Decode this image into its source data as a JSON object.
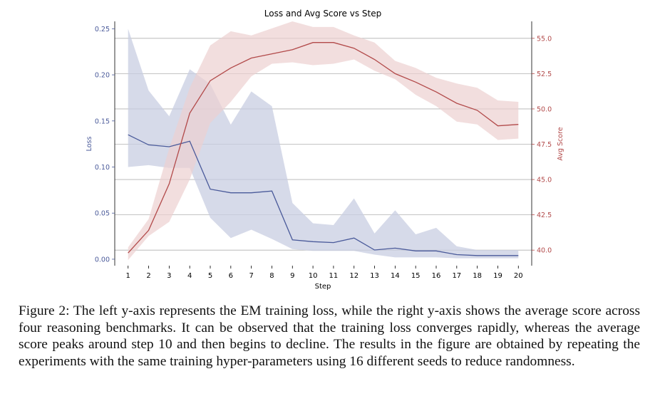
{
  "figure": {
    "caption": "Figure 2: The left y-axis represents the EM training loss, while the right y-axis shows the average score across four reasoning benchmarks. It can be observed that the training loss converges rapidly, whereas the average score peaks around step 10 and then begins to decline. The results in the figure are obtained by repeating the experiments with the same training hyper-parameters using 16 different seeds to reduce randomness."
  },
  "colors": {
    "loss": "#4a5a9a",
    "loss_band": "#c8cde2",
    "score": "#b24a4a",
    "score_band": "#ecd0d0",
    "grid": "#b0b0b0",
    "axis": "#000000"
  },
  "chart_data": {
    "type": "line",
    "title": "Loss and Avg Score vs Step",
    "xlabel": "Step",
    "ylabel_left": "Loss",
    "ylabel_right": "Avg Score",
    "x": [
      1,
      2,
      3,
      4,
      5,
      6,
      7,
      8,
      9,
      10,
      11,
      12,
      13,
      14,
      15,
      16,
      17,
      18,
      19,
      20
    ],
    "xlim": [
      0.35,
      20.65
    ],
    "ylim_left": [
      -0.007,
      0.258
    ],
    "ylim_right": [
      38.9,
      56.2
    ],
    "yticks_left": [
      "0.00",
      "0.05",
      "0.10",
      "0.15",
      "0.20",
      "0.25"
    ],
    "yticks_right": [
      "40.0",
      "42.5",
      "45.0",
      "47.5",
      "50.0",
      "52.5",
      "55.0"
    ],
    "grid": "horizontal (right axis ticks)",
    "series": [
      {
        "name": "Loss",
        "axis": "left",
        "values": [
          0.135,
          0.124,
          0.122,
          0.128,
          0.076,
          0.072,
          0.072,
          0.074,
          0.021,
          0.019,
          0.018,
          0.023,
          0.01,
          0.012,
          0.009,
          0.009,
          0.005,
          0.004,
          0.004,
          0.004
        ],
        "lower": [
          0.1,
          0.102,
          0.099,
          0.099,
          0.045,
          0.023,
          0.032,
          0.022,
          0.011,
          0.009,
          0.009,
          0.009,
          0.005,
          0.002,
          0.002,
          0.002,
          0.001,
          0.001,
          0.001,
          0.001
        ],
        "upper": [
          0.25,
          0.183,
          0.155,
          0.206,
          0.19,
          0.146,
          0.182,
          0.166,
          0.061,
          0.039,
          0.037,
          0.066,
          0.028,
          0.053,
          0.027,
          0.034,
          0.014,
          0.01,
          0.01,
          0.01
        ]
      },
      {
        "name": "Avg Score",
        "axis": "right",
        "values": [
          39.8,
          41.4,
          44.7,
          49.7,
          52.0,
          52.9,
          53.6,
          53.9,
          54.2,
          54.7,
          54.7,
          54.3,
          53.5,
          52.5,
          51.9,
          51.2,
          50.4,
          49.9,
          48.8,
          48.9
        ],
        "lower": [
          39.3,
          41.0,
          42.0,
          45.0,
          49.0,
          50.5,
          52.3,
          53.2,
          53.3,
          53.1,
          53.2,
          53.5,
          52.7,
          52.1,
          51.0,
          50.2,
          49.1,
          48.9,
          47.8,
          47.9
        ],
        "upper": [
          40.2,
          42.2,
          47.2,
          51.5,
          54.5,
          55.5,
          55.2,
          55.7,
          56.2,
          55.8,
          55.8,
          55.2,
          54.7,
          53.4,
          52.9,
          52.2,
          51.8,
          51.5,
          50.6,
          50.5
        ]
      }
    ]
  }
}
